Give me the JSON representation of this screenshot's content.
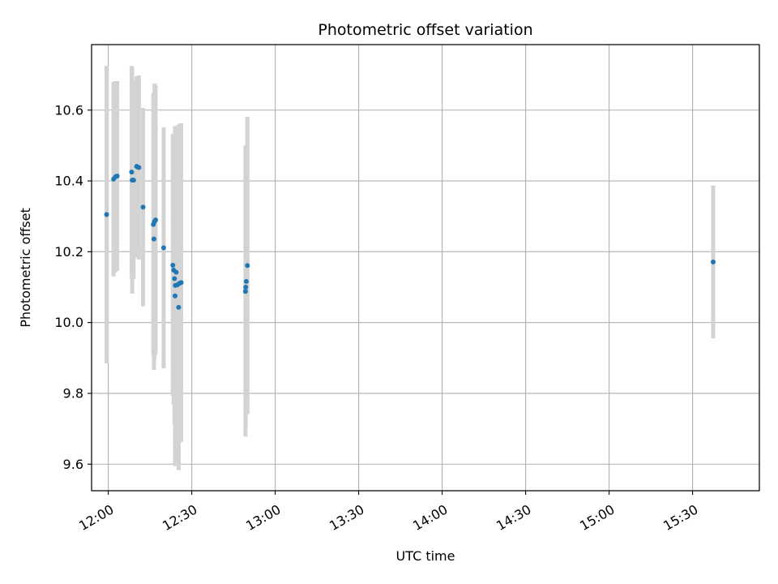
{
  "chart_data": {
    "type": "scatter",
    "title": "Photometric offset variation",
    "xlabel": "UTC time",
    "ylabel": "Photometric offset",
    "x_unit": "time of day (minutes after midnight, UTC)",
    "xlim": [
      714.0,
      954.0
    ],
    "ylim": [
      9.525,
      10.785
    ],
    "x_ticks": [
      {
        "value": 720,
        "label": "12:00"
      },
      {
        "value": 750,
        "label": "12:30"
      },
      {
        "value": 780,
        "label": "13:00"
      },
      {
        "value": 810,
        "label": "13:30"
      },
      {
        "value": 840,
        "label": "14:00"
      },
      {
        "value": 870,
        "label": "14:30"
      },
      {
        "value": 900,
        "label": "15:00"
      },
      {
        "value": 930,
        "label": "15:30"
      }
    ],
    "y_ticks": [
      {
        "value": 9.6,
        "label": "9.6"
      },
      {
        "value": 9.8,
        "label": "9.8"
      },
      {
        "value": 10.0,
        "label": "10.0"
      },
      {
        "value": 10.2,
        "label": "10.2"
      },
      {
        "value": 10.4,
        "label": "10.4"
      },
      {
        "value": 10.6,
        "label": "10.6"
      }
    ],
    "grid": true,
    "marker_color": "#1f77b4",
    "errorbar_color": "#d3d3d3",
    "series": [
      {
        "points": [
          {
            "x": 719.4,
            "y": 10.305,
            "err": 0.42
          },
          {
            "x": 721.9,
            "y": 10.405,
            "err": 0.275
          },
          {
            "x": 722.6,
            "y": 10.412,
            "err": 0.27
          },
          {
            "x": 723.2,
            "y": 10.414,
            "err": 0.268
          },
          {
            "x": 728.4,
            "y": 10.425,
            "err": 0.3
          },
          {
            "x": 728.6,
            "y": 10.402,
            "err": 0.32
          },
          {
            "x": 729.1,
            "y": 10.402,
            "err": 0.28
          },
          {
            "x": 730.2,
            "y": 10.441,
            "err": 0.255
          },
          {
            "x": 730.6,
            "y": 10.439,
            "err": 0.255
          },
          {
            "x": 731.0,
            "y": 10.438,
            "err": 0.26
          },
          {
            "x": 732.5,
            "y": 10.326,
            "err": 0.28
          },
          {
            "x": 736.2,
            "y": 10.277,
            "err": 0.37
          },
          {
            "x": 736.4,
            "y": 10.236,
            "err": 0.37
          },
          {
            "x": 736.6,
            "y": 10.285,
            "err": 0.39
          },
          {
            "x": 737.0,
            "y": 10.29,
            "err": 0.38
          },
          {
            "x": 739.9,
            "y": 10.211,
            "err": 0.34
          },
          {
            "x": 743.2,
            "y": 10.162,
            "err": 0.37
          },
          {
            "x": 743.5,
            "y": 10.148,
            "err": 0.38
          },
          {
            "x": 743.8,
            "y": 10.124,
            "err": 0.41
          },
          {
            "x": 744.1,
            "y": 10.105,
            "err": 0.44
          },
          {
            "x": 744.0,
            "y": 10.075,
            "err": 0.48
          },
          {
            "x": 744.4,
            "y": 10.142,
            "err": 0.39
          },
          {
            "x": 744.9,
            "y": 10.107,
            "err": 0.45
          },
          {
            "x": 745.3,
            "y": 10.043,
            "err": 0.46
          },
          {
            "x": 745.6,
            "y": 10.111,
            "err": 0.45
          },
          {
            "x": 746.2,
            "y": 10.113,
            "err": 0.45
          },
          {
            "x": 769.3,
            "y": 10.088,
            "err": 0.41
          },
          {
            "x": 769.4,
            "y": 10.1,
            "err": 0.4
          },
          {
            "x": 769.6,
            "y": 10.116,
            "err": 0.36
          },
          {
            "x": 770.0,
            "y": 10.161,
            "err": 0.42
          },
          {
            "x": 937.4,
            "y": 10.171,
            "err": 0.216
          }
        ]
      }
    ]
  }
}
